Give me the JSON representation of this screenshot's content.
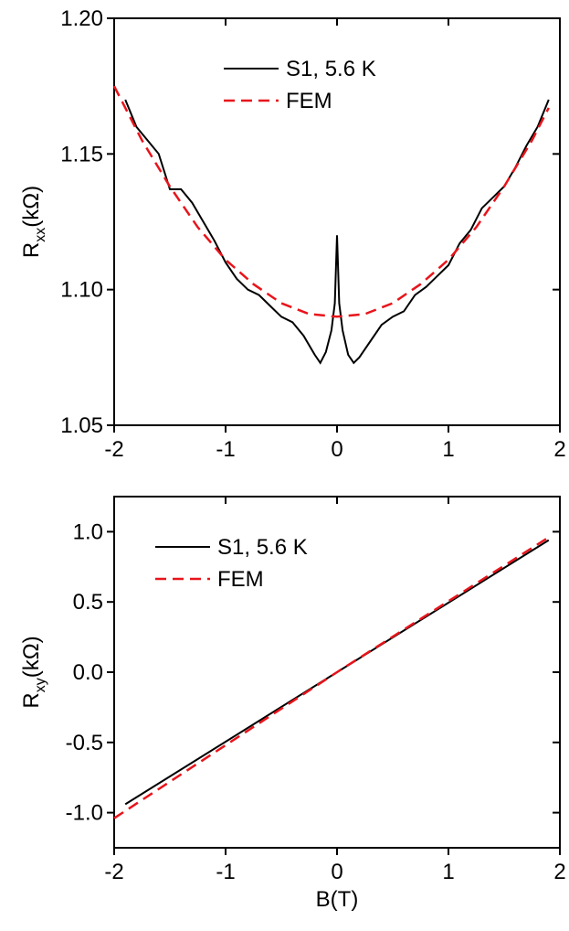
{
  "chart_data": [
    {
      "type": "line",
      "y_label": {
        "main": "R",
        "sub": "xx",
        "unit": "(kΩ)"
      },
      "xlim": [
        -2,
        2
      ],
      "xticks": [
        -2,
        -1,
        0,
        1,
        2
      ],
      "ylim": [
        1.05,
        1.2
      ],
      "yticks": [
        1.05,
        {
          "value": 1.1,
          "label": "1.10"
        },
        1.15,
        {
          "value": 1.2,
          "label": "1.20"
        }
      ],
      "legend": "upper center",
      "series": [
        {
          "name": "S1, 5.6 K",
          "color": "#000000",
          "style": "solid",
          "x": [
            -1.9,
            -1.8,
            -1.7,
            -1.6,
            -1.5,
            -1.4,
            -1.3,
            -1.2,
            -1.1,
            -1.0,
            -0.9,
            -0.8,
            -0.7,
            -0.6,
            -0.5,
            -0.4,
            -0.3,
            -0.2,
            -0.15,
            -0.1,
            -0.05,
            -0.02,
            0,
            0.02,
            0.05,
            0.1,
            0.15,
            0.2,
            0.3,
            0.4,
            0.5,
            0.6,
            0.7,
            0.8,
            0.9,
            1.0,
            1.1,
            1.2,
            1.3,
            1.4,
            1.5,
            1.6,
            1.7,
            1.8,
            1.9
          ],
          "values": [
            1.17,
            1.16,
            1.155,
            1.15,
            1.137,
            1.137,
            1.132,
            1.125,
            1.118,
            1.11,
            1.104,
            1.1,
            1.098,
            1.094,
            1.09,
            1.088,
            1.083,
            1.076,
            1.073,
            1.077,
            1.085,
            1.095,
            1.12,
            1.095,
            1.085,
            1.076,
            1.073,
            1.075,
            1.081,
            1.087,
            1.09,
            1.092,
            1.098,
            1.101,
            1.105,
            1.109,
            1.117,
            1.122,
            1.13,
            1.134,
            1.138,
            1.145,
            1.153,
            1.16,
            1.17
          ]
        },
        {
          "name": "FEM",
          "color": "#e8141b",
          "style": "dashed",
          "x": [
            -2,
            -1.75,
            -1.5,
            -1.25,
            -1,
            -0.75,
            -0.5,
            -0.25,
            0,
            0.25,
            0.5,
            0.75,
            1,
            1.25,
            1.5,
            1.75,
            1.9
          ],
          "values": [
            1.175,
            1.155,
            1.138,
            1.123,
            1.111,
            1.102,
            1.095,
            1.091,
            1.09,
            1.091,
            1.095,
            1.102,
            1.111,
            1.123,
            1.138,
            1.155,
            1.167
          ]
        }
      ]
    },
    {
      "type": "line",
      "x_label": "B(T)",
      "y_label": {
        "main": "R",
        "sub": "xy",
        "unit": "(kΩ)"
      },
      "xlim": [
        -2,
        2
      ],
      "xticks": [
        -2,
        -1,
        0,
        1,
        2
      ],
      "ylim": [
        -1.25,
        1.25
      ],
      "yticks": [
        {
          "value": -1,
          "label": "-1.0"
        },
        -0.5,
        {
          "value": 0,
          "label": "0.0"
        },
        0.5,
        {
          "value": 1,
          "label": "1.0"
        }
      ],
      "legend": "upper left",
      "series": [
        {
          "name": "S1, 5.6 K",
          "color": "#000000",
          "style": "solid",
          "x": [
            -1.9,
            0,
            1.9
          ],
          "values": [
            -0.94,
            0,
            0.94
          ]
        },
        {
          "name": "FEM",
          "color": "#e8141b",
          "style": "dashed",
          "x": [
            -2,
            0,
            1.9
          ],
          "values": [
            -1.04,
            0,
            0.96
          ]
        }
      ]
    }
  ]
}
